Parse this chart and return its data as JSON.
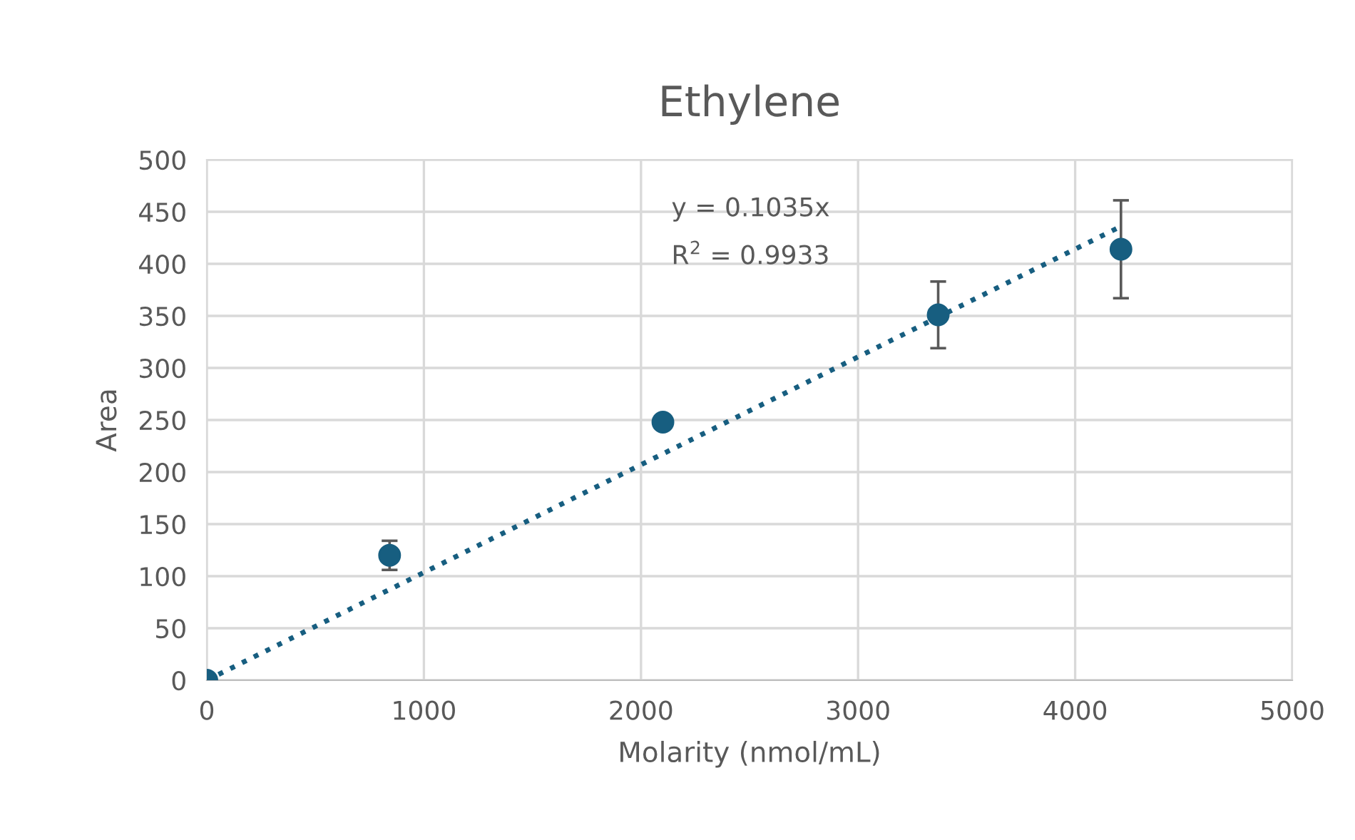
{
  "chart_data": {
    "type": "scatter",
    "title": "Ethylene",
    "xlabel": "Molarity (nmol/mL)",
    "ylabel": "Area",
    "xlim": [
      0,
      5000
    ],
    "xticks": [
      0,
      1000,
      2000,
      3000,
      4000,
      5000
    ],
    "ylim": [
      0,
      500
    ],
    "yticks": [
      0,
      50,
      100,
      150,
      200,
      250,
      300,
      350,
      400,
      450,
      500
    ],
    "grid": true,
    "series": [
      {
        "marker": "circle",
        "color": "#175e80",
        "x": [
          0,
          842,
          2101,
          3369,
          4211
        ],
        "values": [
          0,
          120,
          248,
          351,
          414
        ],
        "errors": [
          null,
          14,
          null,
          32,
          47
        ]
      },
      {
        "type": "line",
        "color": "#175e80",
        "line_style": "dotted",
        "x": [
          0,
          4211
        ],
        "values": [
          0,
          436
        ]
      }
    ],
    "annotations": [
      "y = 0.1035x",
      "R$^{2}$ = 0.9933"
    ]
  }
}
